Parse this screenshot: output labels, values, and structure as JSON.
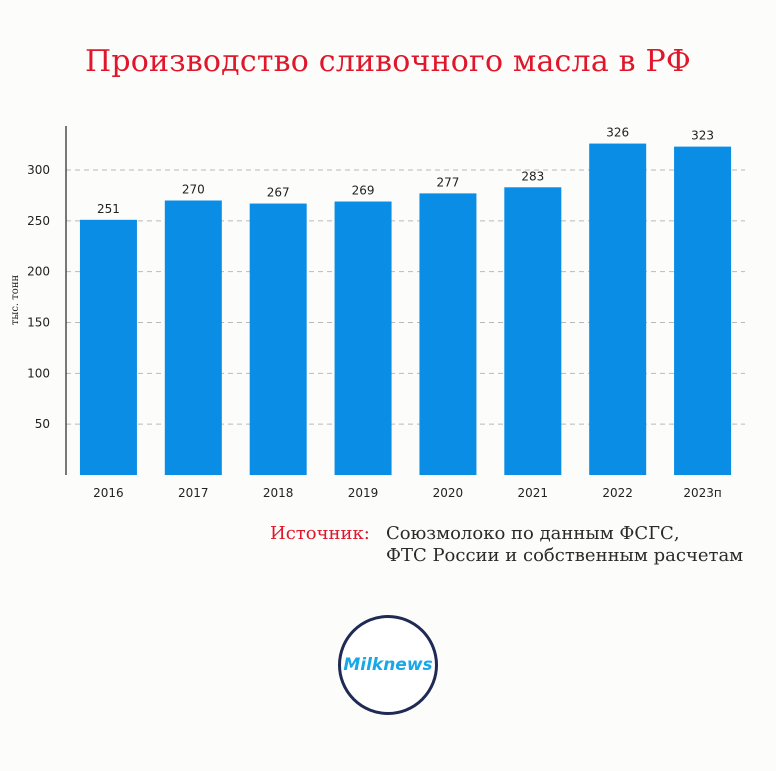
{
  "title": "Производство сливочного масла в РФ",
  "chart_data": {
    "type": "bar",
    "categories": [
      "2016",
      "2017",
      "2018",
      "2019",
      "2020",
      "2021",
      "2022",
      "2023п"
    ],
    "values": [
      251,
      270,
      267,
      269,
      277,
      283,
      326,
      323
    ],
    "ylabel": "тыс. тонн",
    "yticks": [
      50,
      100,
      150,
      200,
      250,
      300
    ],
    "ylim": [
      0,
      340
    ],
    "grid": true,
    "bar_color": "#0a8ee5"
  },
  "source": {
    "label": "Источник:",
    "line1": "Союзмолоко по данным ФСГС,",
    "line2": "ФТС России и собственным расчетам"
  },
  "logo": {
    "text": "Milknews"
  }
}
